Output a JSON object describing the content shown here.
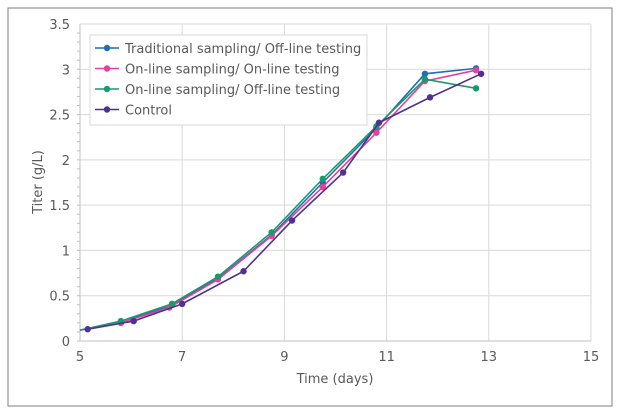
{
  "chart_data": {
    "type": "line",
    "title": "",
    "xlabel": "Time (days)",
    "ylabel": "Titer (g/L)",
    "xlim": [
      5,
      15
    ],
    "ylim": [
      0,
      3.5
    ],
    "xticks": [
      5,
      7,
      9,
      11,
      13,
      15
    ],
    "yticks": [
      0,
      0.5,
      1,
      1.5,
      2,
      2.5,
      3,
      3.5
    ],
    "grid": true,
    "legend_position": "top-left",
    "series": [
      {
        "name": "Traditional sampling/ Off-line testing",
        "color": "#1f6fb4",
        "x": [
          5.0,
          5.8,
          6.8,
          7.7,
          8.75,
          9.75,
          10.8,
          11.75,
          12.75
        ],
        "y": [
          0.12,
          0.2,
          0.4,
          0.69,
          1.17,
          1.75,
          2.35,
          2.95,
          3.01
        ]
      },
      {
        "name": "On-line sampling/ On-line testing",
        "color": "#e83e9c",
        "x": [
          5.0,
          5.8,
          6.75,
          7.7,
          8.75,
          9.75,
          10.8,
          11.75,
          12.75
        ],
        "y": [
          0.12,
          0.2,
          0.37,
          0.68,
          1.16,
          1.7,
          2.3,
          2.87,
          2.99
        ]
      },
      {
        "name": "On-line sampling/ Off-line testing",
        "color": "#1a9a6c",
        "x": [
          5.0,
          5.8,
          6.8,
          7.7,
          8.75,
          9.75,
          10.8,
          11.75,
          12.75
        ],
        "y": [
          0.12,
          0.22,
          0.41,
          0.71,
          1.2,
          1.79,
          2.37,
          2.89,
          2.79
        ]
      },
      {
        "name": "Control",
        "color": "#503090",
        "x": [
          5.15,
          6.05,
          7.0,
          8.2,
          9.15,
          10.15,
          10.85,
          11.85,
          12.85
        ],
        "y": [
          0.13,
          0.22,
          0.41,
          0.77,
          1.33,
          1.86,
          2.41,
          2.69,
          2.95
        ]
      }
    ]
  }
}
